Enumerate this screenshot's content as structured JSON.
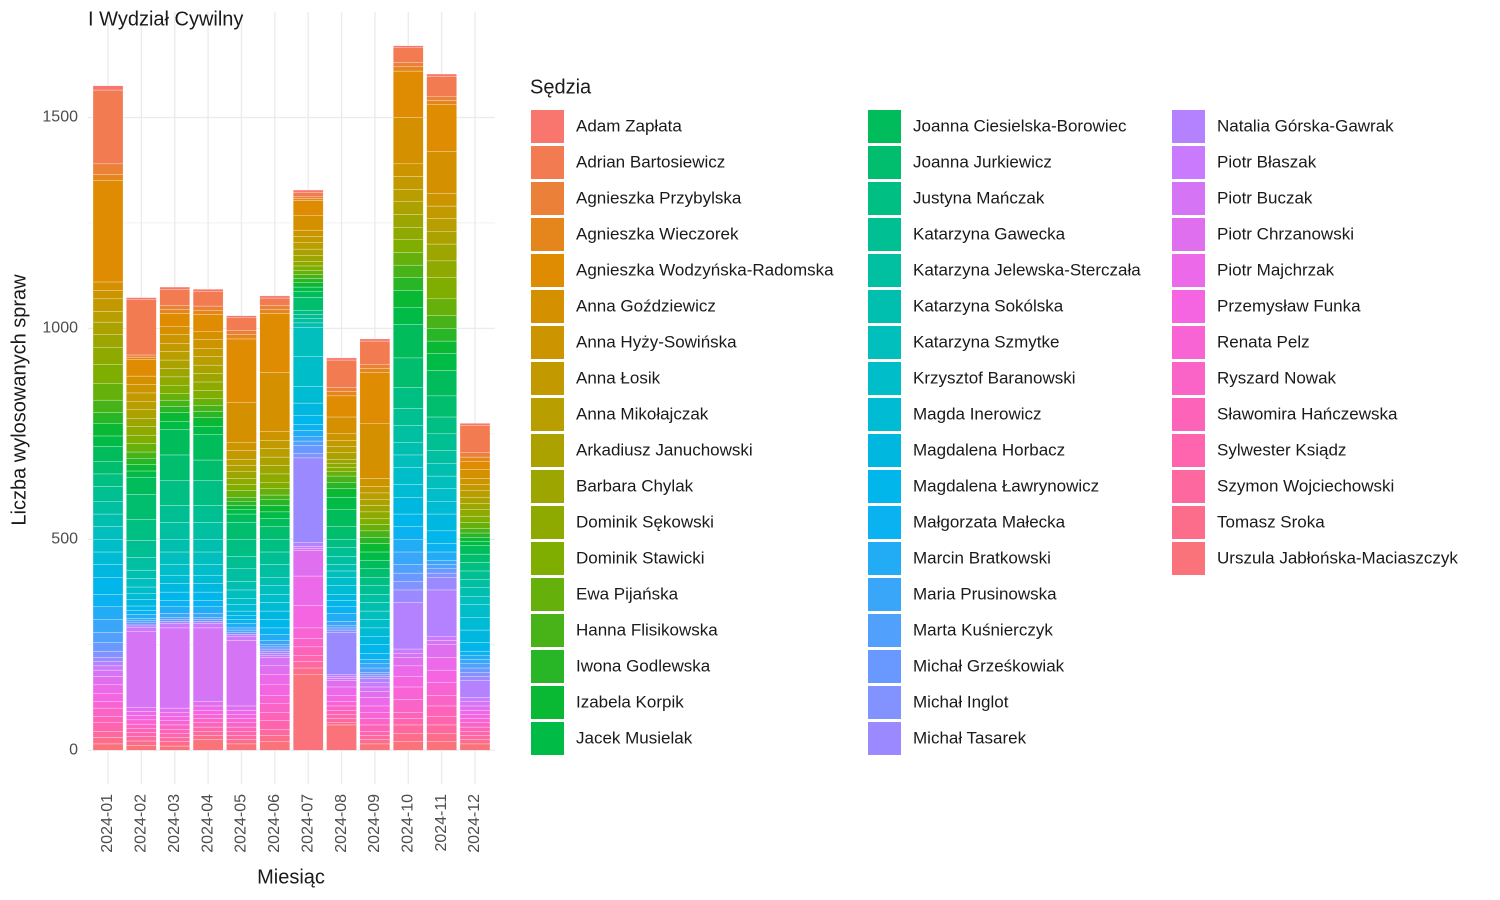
{
  "chart_data": {
    "type": "stacked_bar",
    "title": "I Wydział Cywilny",
    "x_label": "Miesiąc",
    "y_label": "Liczba wylosowanych spraw",
    "legend_title": "Sędzia",
    "legend_position": "right",
    "grid": true,
    "y_minor_grid": [
      250,
      750,
      1250
    ],
    "ylim": [
      -80,
      1750
    ],
    "yticks": [
      0,
      500,
      1000,
      1500
    ],
    "categories": [
      "2024-01",
      "2024-02",
      "2024-03",
      "2024-04",
      "2024-05",
      "2024-06",
      "2024-07",
      "2024-08",
      "2024-09",
      "2024-10",
      "2024-11",
      "2024-12"
    ],
    "series": [
      {
        "name": "Adam Zapłata",
        "color": "#F8766D",
        "values": [
          10,
          5,
          5,
          5,
          5,
          5,
          5,
          5,
          5,
          5,
          5,
          5
        ]
      },
      {
        "name": "Adrian Bartosiewicz",
        "color": "#F27B52",
        "values": [
          175,
          131,
          38,
          35,
          30,
          17,
          10,
          65,
          55,
          35,
          48,
          65
        ]
      },
      {
        "name": "Agnieszka Przybylska",
        "color": "#EB8138",
        "values": [
          25,
          5,
          10,
          10,
          10,
          10,
          5,
          10,
          10,
          10,
          10,
          10
        ]
      },
      {
        "name": "Agnieszka Wieczorek",
        "color": "#E5861D",
        "values": [
          15,
          5,
          10,
          10,
          10,
          10,
          5,
          10,
          10,
          10,
          10,
          10
        ]
      },
      {
        "name": "Agnieszka Wodzyńska-Radomska",
        "color": "#DF8C03",
        "values": [
          240,
          40,
          30,
          40,
          150,
          140,
          35,
          50,
          120,
          110,
          110,
          20
        ]
      },
      {
        "name": "Anna Goździewicz",
        "color": "#D59000",
        "values": [
          20,
          20,
          20,
          20,
          95,
          140,
          35,
          40,
          130,
          110,
          100,
          20
        ]
      },
      {
        "name": "Anna Hyży-Sowińska",
        "color": "#CC9500",
        "values": [
          20,
          20,
          20,
          20,
          20,
          20,
          15,
          15,
          20,
          30,
          30,
          15
        ]
      },
      {
        "name": "Anna Łosik",
        "color": "#C29A00",
        "values": [
          30,
          20,
          20,
          20,
          20,
          20,
          15,
          15,
          15,
          30,
          30,
          15
        ]
      },
      {
        "name": "Anna Mikołajczak",
        "color": "#B99E00",
        "values": [
          25,
          20,
          20,
          20,
          15,
          20,
          15,
          15,
          15,
          30,
          30,
          15
        ]
      },
      {
        "name": "Arkadiusz Januchowski",
        "color": "#ABA200",
        "values": [
          30,
          20,
          20,
          20,
          15,
          20,
          15,
          15,
          15,
          30,
          30,
          15
        ]
      },
      {
        "name": "Barbara Chylak",
        "color": "#9DA600",
        "values": [
          30,
          20,
          20,
          20,
          15,
          20,
          15,
          10,
          15,
          30,
          40,
          15
        ]
      },
      {
        "name": "Dominik Sękowski",
        "color": "#8EA900",
        "values": [
          40,
          20,
          20,
          20,
          15,
          20,
          10,
          10,
          15,
          30,
          40,
          15
        ]
      },
      {
        "name": "Dominik Stawicki",
        "color": "#7FAD00",
        "values": [
          45,
          20,
          20,
          20,
          15,
          15,
          10,
          10,
          15,
          30,
          50,
          15
        ]
      },
      {
        "name": "Ewa Pijańska",
        "color": "#65B00A",
        "values": [
          40,
          20,
          15,
          15,
          15,
          15,
          10,
          10,
          15,
          30,
          40,
          15
        ]
      },
      {
        "name": "Hanna Flisikowska",
        "color": "#47B318",
        "values": [
          30,
          15,
          15,
          15,
          10,
          10,
          10,
          15,
          15,
          30,
          30,
          10
        ]
      },
      {
        "name": "Iwona Godlewska",
        "color": "#28B626",
        "values": [
          25,
          15,
          15,
          15,
          10,
          15,
          10,
          15,
          15,
          30,
          30,
          10
        ]
      },
      {
        "name": "Izabela Korpik",
        "color": "#0AB933",
        "values": [
          30,
          15,
          20,
          20,
          10,
          15,
          10,
          20,
          20,
          40,
          30,
          10
        ]
      },
      {
        "name": "Jacek Musielak",
        "color": "#00BB46",
        "values": [
          25,
          15,
          20,
          20,
          10,
          15,
          10,
          30,
          20,
          40,
          40,
          10
        ]
      },
      {
        "name": "Joanna Ciesielska-Borowiec",
        "color": "#00BC5A",
        "values": [
          35,
          40,
          60,
          60,
          20,
          20,
          15,
          40,
          20,
          80,
          60,
          20
        ]
      },
      {
        "name": "Joanna Jurkiewicz",
        "color": "#00BE6E",
        "values": [
          30,
          60,
          60,
          48,
          40,
          30,
          30,
          30,
          20,
          70,
          50,
          20
        ]
      },
      {
        "name": "Justyna Mańczak",
        "color": "#00BF83",
        "values": [
          30,
          50,
          60,
          60,
          40,
          30,
          10,
          20,
          20,
          50,
          40,
          20
        ]
      },
      {
        "name": "Katarzyna Gawecka",
        "color": "#00C093",
        "values": [
          35,
          40,
          40,
          40,
          30,
          30,
          10,
          20,
          20,
          40,
          40,
          20
        ]
      },
      {
        "name": "Katarzyna Jelewska-Sterczała",
        "color": "#00C0A1",
        "values": [
          30,
          30,
          40,
          40,
          30,
          30,
          10,
          20,
          20,
          40,
          30,
          20
        ]
      },
      {
        "name": "Katarzyna Sokólska",
        "color": "#00BFAF",
        "values": [
          30,
          20,
          30,
          30,
          20,
          20,
          10,
          15,
          20,
          30,
          30,
          20
        ]
      },
      {
        "name": "Katarzyna Szmytke",
        "color": "#00BFBD",
        "values": [
          30,
          20,
          30,
          30,
          20,
          20,
          70,
          15,
          20,
          30,
          30,
          20
        ]
      },
      {
        "name": "Krzysztof Baranowski",
        "color": "#00BEC9",
        "values": [
          30,
          15,
          25,
          25,
          15,
          20,
          70,
          20,
          20,
          40,
          30,
          30
        ]
      },
      {
        "name": "Magda Inerowicz",
        "color": "#00BBD4",
        "values": [
          30,
          15,
          20,
          20,
          15,
          20,
          40,
          20,
          20,
          30,
          30,
          30
        ]
      },
      {
        "name": "Magdalena Horbacz",
        "color": "#00B8DF",
        "values": [
          30,
          15,
          20,
          20,
          10,
          20,
          30,
          15,
          20,
          40,
          40,
          30
        ]
      },
      {
        "name": "Magdalena Ławrynowicz",
        "color": "#00B6EA",
        "values": [
          40,
          10,
          20,
          20,
          10,
          20,
          20,
          15,
          20,
          30,
          30,
          20
        ]
      },
      {
        "name": "Małgorzata Małecka",
        "color": "#0AB2F2",
        "values": [
          30,
          10,
          15,
          15,
          10,
          15,
          15,
          15,
          15,
          30,
          20,
          10
        ]
      },
      {
        "name": "Marcin Bratkowski",
        "color": "#22ACF5",
        "values": [
          30,
          10,
          15,
          15,
          10,
          15,
          15,
          20,
          10,
          30,
          20,
          10
        ]
      },
      {
        "name": "Maria Prusinowska",
        "color": "#39A6F9",
        "values": [
          30,
          5,
          10,
          10,
          5,
          10,
          10,
          10,
          10,
          30,
          10,
          10
        ]
      },
      {
        "name": "Marta Kuśnierczyk",
        "color": "#51A0FC",
        "values": [
          25,
          5,
          5,
          5,
          5,
          5,
          10,
          5,
          10,
          20,
          10,
          10
        ]
      },
      {
        "name": "Michał Grześkowiak",
        "color": "#6999FF",
        "values": [
          20,
          5,
          5,
          5,
          5,
          5,
          20,
          5,
          5,
          20,
          10,
          10
        ]
      },
      {
        "name": "Michał Inglot",
        "color": "#8292FF",
        "values": [
          15,
          0,
          0,
          0,
          0,
          5,
          10,
          5,
          5,
          20,
          10,
          10
        ]
      },
      {
        "name": "Michał Tasarek",
        "color": "#9B8AFF",
        "values": [
          10,
          0,
          0,
          0,
          0,
          5,
          200,
          100,
          5,
          30,
          30,
          10
        ]
      },
      {
        "name": "Natalia Górska-Gawrak",
        "color": "#B482FF",
        "values": [
          10,
          5,
          5,
          5,
          5,
          5,
          10,
          5,
          10,
          110,
          110,
          40
        ]
      },
      {
        "name": "Piotr Błaszak",
        "color": "#CA7BFD",
        "values": [
          10,
          10,
          10,
          10,
          10,
          5,
          5,
          5,
          10,
          10,
          10,
          10
        ]
      },
      {
        "name": "Piotr Buczak",
        "color": "#D575F6",
        "values": [
          15,
          180,
          190,
          175,
          155,
          20,
          5,
          5,
          10,
          10,
          10,
          10
        ]
      },
      {
        "name": "Piotr Chrzanowski",
        "color": "#E06FF0",
        "values": [
          20,
          10,
          10,
          10,
          10,
          20,
          60,
          15,
          15,
          20,
          30,
          10
        ]
      },
      {
        "name": "Piotr Majchrzak",
        "color": "#EC69E9",
        "values": [
          20,
          10,
          10,
          10,
          10,
          25,
          70,
          20,
          20,
          25,
          30,
          10
        ]
      },
      {
        "name": "Przemysław Funka",
        "color": "#F564E1",
        "values": [
          20,
          10,
          10,
          10,
          10,
          25,
          53,
          15,
          15,
          25,
          30,
          10
        ]
      },
      {
        "name": "Renata Pelz",
        "color": "#F864D4",
        "values": [
          15,
          10,
          10,
          10,
          10,
          20,
          25,
          10,
          15,
          30,
          30,
          10
        ]
      },
      {
        "name": "Ryszard Nowak",
        "color": "#FA64C6",
        "values": [
          20,
          10,
          10,
          10,
          10,
          20,
          20,
          10,
          15,
          30,
          25,
          10
        ]
      },
      {
        "name": "Sławomira Hańczewska",
        "color": "#FD64B9",
        "values": [
          15,
          10,
          10,
          10,
          10,
          20,
          20,
          10,
          15,
          15,
          25,
          10
        ]
      },
      {
        "name": "Sylwester Ksiądz",
        "color": "#FF64AF",
        "values": [
          20,
          10,
          10,
          10,
          10,
          20,
          15,
          10,
          10,
          15,
          20,
          10
        ]
      },
      {
        "name": "Szymon Wojciechowski",
        "color": "#FD699E",
        "values": [
          15,
          10,
          10,
          10,
          10,
          15,
          15,
          10,
          10,
          20,
          20,
          10
        ]
      },
      {
        "name": "Tomasz Sroka",
        "color": "#FB6D8B",
        "values": [
          15,
          10,
          10,
          10,
          10,
          15,
          15,
          5,
          10,
          20,
          20,
          10
        ]
      },
      {
        "name": "Urszula Jabłońska-Maciaszczyk",
        "color": "#FA727A",
        "values": [
          15,
          12,
          10,
          25,
          15,
          20,
          180,
          60,
          15,
          20,
          20,
          15
        ]
      }
    ]
  }
}
